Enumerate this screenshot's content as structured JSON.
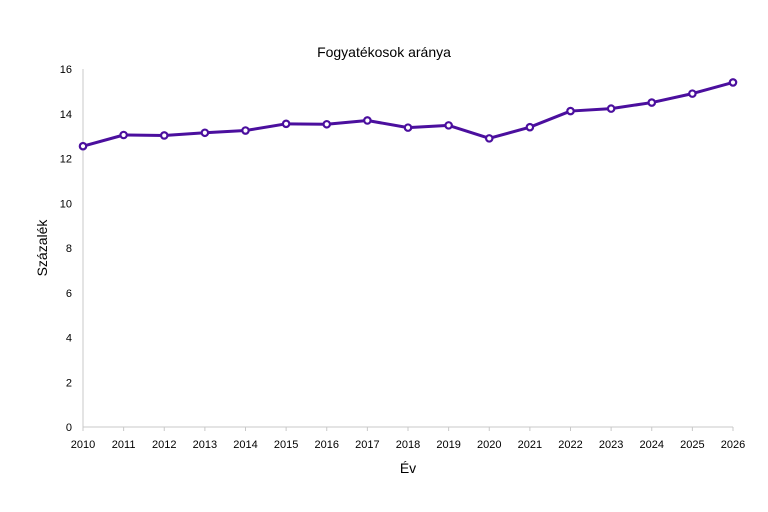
{
  "chart_data": {
    "type": "line",
    "title": "Fogyatékosok aránya",
    "xlabel": "Év",
    "ylabel": "Százalék",
    "x": [
      2010,
      2011,
      2012,
      2013,
      2014,
      2015,
      2016,
      2017,
      2018,
      2019,
      2020,
      2021,
      2022,
      2023,
      2024,
      2025,
      2026
    ],
    "y_ticks": [
      0,
      2,
      4,
      6,
      8,
      10,
      12,
      14,
      16
    ],
    "ylim": [
      0,
      16
    ],
    "grid": false,
    "series": [
      {
        "color": "#4b0f9e",
        "values": [
          12.55,
          13.05,
          13.03,
          13.15,
          13.25,
          13.55,
          13.53,
          13.7,
          13.38,
          13.48,
          12.9,
          13.4,
          14.12,
          14.23,
          14.5,
          14.9,
          15.4
        ]
      }
    ]
  }
}
